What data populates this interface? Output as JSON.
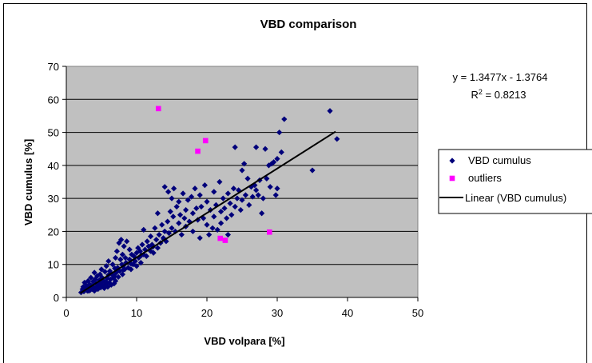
{
  "chart_data": {
    "type": "scatter",
    "title": "VBD comparison",
    "xlabel": "VBD volpara [%]",
    "ylabel": "VBD cumulus [%]",
    "xlim": [
      0,
      50
    ],
    "ylim": [
      0,
      70
    ],
    "xticks": [
      0,
      10,
      20,
      30,
      40,
      50
    ],
    "yticks": [
      0,
      10,
      20,
      30,
      40,
      50,
      60,
      70
    ],
    "grid": "horizontal",
    "plot_background": "#c0c0c0",
    "legend_position": "right",
    "trendline": {
      "name": "Linear (VBD cumulus)",
      "slope": 1.3477,
      "intercept": -1.3764,
      "x_range": [
        2.0,
        38.3
      ],
      "equation": "y = 1.3477x - 1.3764",
      "r2_label": "R",
      "r2_sup": "2",
      "r2_value": " = 0.8213",
      "color": "#000000"
    },
    "series": [
      {
        "name": "VBD cumulus",
        "color": "#00007a",
        "marker": "diamond",
        "points": [
          [
            2.1,
            1.5
          ],
          [
            2.3,
            2.5
          ],
          [
            2.4,
            3.2
          ],
          [
            2.5,
            1.8
          ],
          [
            2.6,
            4.5
          ],
          [
            2.8,
            2.8
          ],
          [
            2.9,
            3.5
          ],
          [
            3.0,
            2.0
          ],
          [
            3.1,
            5.0
          ],
          [
            3.2,
            3.0
          ],
          [
            3.3,
            4.0
          ],
          [
            3.4,
            2.2
          ],
          [
            3.5,
            6.0
          ],
          [
            3.6,
            3.5
          ],
          [
            3.7,
            2.5
          ],
          [
            3.8,
            4.8
          ],
          [
            3.9,
            3.2
          ],
          [
            4.0,
            7.5
          ],
          [
            4.0,
            2.0
          ],
          [
            4.1,
            5.5
          ],
          [
            4.2,
            3.0
          ],
          [
            4.3,
            4.2
          ],
          [
            4.4,
            6.5
          ],
          [
            4.5,
            2.5
          ],
          [
            4.6,
            3.8
          ],
          [
            4.7,
            5.2
          ],
          [
            4.8,
            7.0
          ],
          [
            4.9,
            3.0
          ],
          [
            5.0,
            4.5
          ],
          [
            5.0,
            8.5
          ],
          [
            5.1,
            6.0
          ],
          [
            5.2,
            3.5
          ],
          [
            5.3,
            5.0
          ],
          [
            5.4,
            2.8
          ],
          [
            5.5,
            7.8
          ],
          [
            5.6,
            4.0
          ],
          [
            5.7,
            9.5
          ],
          [
            5.8,
            5.8
          ],
          [
            5.9,
            3.2
          ],
          [
            6.0,
            6.8
          ],
          [
            6.0,
            11.0
          ],
          [
            6.1,
            4.5
          ],
          [
            6.2,
            8.0
          ],
          [
            6.3,
            5.5
          ],
          [
            6.4,
            3.8
          ],
          [
            6.5,
            7.0
          ],
          [
            6.6,
            10.0
          ],
          [
            6.7,
            6.0
          ],
          [
            6.8,
            4.2
          ],
          [
            6.9,
            8.8
          ],
          [
            7.0,
            12.0
          ],
          [
            7.0,
            5.0
          ],
          [
            7.1,
            7.5
          ],
          [
            7.2,
            14.0
          ],
          [
            7.3,
            9.0
          ],
          [
            7.4,
            6.2
          ],
          [
            7.5,
            16.5
          ],
          [
            7.6,
            8.0
          ],
          [
            7.7,
            11.5
          ],
          [
            7.8,
            17.5
          ],
          [
            7.9,
            10.0
          ],
          [
            8.0,
            7.0
          ],
          [
            8.0,
            13.0
          ],
          [
            8.1,
            9.5
          ],
          [
            8.2,
            15.5
          ],
          [
            8.3,
            8.5
          ],
          [
            8.4,
            12.0
          ],
          [
            8.5,
            10.5
          ],
          [
            8.6,
            17.0
          ],
          [
            8.8,
            9.0
          ],
          [
            9.0,
            11.5
          ],
          [
            9.0,
            14.5
          ],
          [
            9.2,
            8.5
          ],
          [
            9.3,
            13.0
          ],
          [
            9.5,
            10.0
          ],
          [
            9.6,
            12.5
          ],
          [
            9.8,
            11.0
          ],
          [
            10.0,
            13.5
          ],
          [
            10.0,
            9.5
          ],
          [
            10.2,
            15.0
          ],
          [
            10.3,
            12.0
          ],
          [
            10.5,
            14.0
          ],
          [
            10.6,
            10.5
          ],
          [
            10.8,
            16.0
          ],
          [
            11.0,
            13.0
          ],
          [
            11.0,
            20.5
          ],
          [
            11.2,
            14.5
          ],
          [
            11.4,
            12.5
          ],
          [
            11.5,
            17.0
          ],
          [
            11.7,
            15.5
          ],
          [
            12.0,
            14.0
          ],
          [
            12.0,
            18.5
          ],
          [
            12.2,
            16.0
          ],
          [
            12.4,
            13.5
          ],
          [
            12.6,
            21.0
          ],
          [
            12.8,
            17.5
          ],
          [
            13.0,
            15.0
          ],
          [
            13.0,
            25.5
          ],
          [
            13.2,
            19.0
          ],
          [
            13.4,
            16.5
          ],
          [
            13.6,
            22.0
          ],
          [
            13.8,
            18.0
          ],
          [
            14.0,
            20.0
          ],
          [
            14.0,
            33.5
          ],
          [
            14.2,
            17.0
          ],
          [
            14.4,
            23.0
          ],
          [
            14.5,
            32.0
          ],
          [
            14.6,
            19.5
          ],
          [
            14.8,
            26.0
          ],
          [
            15.0,
            21.0
          ],
          [
            15.0,
            30.0
          ],
          [
            15.2,
            24.5
          ],
          [
            15.3,
            33.0
          ],
          [
            15.5,
            20.0
          ],
          [
            15.7,
            27.5
          ],
          [
            16.0,
            22.5
          ],
          [
            16.0,
            29.0
          ],
          [
            16.2,
            25.0
          ],
          [
            16.4,
            19.0
          ],
          [
            16.6,
            31.5
          ],
          [
            16.8,
            24.0
          ],
          [
            17.0,
            26.5
          ],
          [
            17.0,
            21.5
          ],
          [
            17.3,
            29.5
          ],
          [
            17.5,
            23.0
          ],
          [
            17.8,
            30.5
          ],
          [
            18.0,
            25.5
          ],
          [
            18.0,
            20.0
          ],
          [
            18.3,
            33.0
          ],
          [
            18.5,
            27.0
          ],
          [
            18.7,
            23.5
          ],
          [
            19.0,
            31.0
          ],
          [
            19.0,
            18.0
          ],
          [
            19.2,
            27.5
          ],
          [
            19.5,
            24.0
          ],
          [
            19.7,
            34.0
          ],
          [
            20.0,
            22.0
          ],
          [
            20.0,
            29.0
          ],
          [
            20.3,
            19.0
          ],
          [
            20.5,
            26.5
          ],
          [
            20.8,
            21.0
          ],
          [
            21.0,
            32.0
          ],
          [
            21.0,
            24.5
          ],
          [
            21.3,
            28.0
          ],
          [
            21.5,
            20.5
          ],
          [
            21.8,
            35.0
          ],
          [
            22.0,
            26.0
          ],
          [
            22.0,
            22.5
          ],
          [
            22.3,
            30.0
          ],
          [
            22.5,
            27.0
          ],
          [
            22.8,
            24.0
          ],
          [
            23.0,
            31.5
          ],
          [
            23.0,
            19.0
          ],
          [
            23.3,
            28.5
          ],
          [
            23.5,
            25.0
          ],
          [
            23.8,
            33.0
          ],
          [
            24.0,
            27.5
          ],
          [
            24.0,
            45.5
          ],
          [
            24.3,
            30.0
          ],
          [
            24.5,
            32.5
          ],
          [
            24.8,
            26.5
          ],
          [
            25.0,
            38.5
          ],
          [
            25.0,
            29.5
          ],
          [
            25.3,
            40.5
          ],
          [
            25.5,
            31.0
          ],
          [
            25.8,
            36.0
          ],
          [
            26.0,
            28.0
          ],
          [
            26.3,
            33.5
          ],
          [
            26.5,
            30.5
          ],
          [
            26.8,
            34.0
          ],
          [
            27.0,
            45.5
          ],
          [
            27.0,
            32.5
          ],
          [
            27.3,
            31.0
          ],
          [
            27.5,
            35.5
          ],
          [
            27.8,
            25.5
          ],
          [
            28.0,
            30.0
          ],
          [
            28.3,
            45.0
          ],
          [
            28.5,
            36.0
          ],
          [
            28.8,
            40.0
          ],
          [
            29.0,
            33.5
          ],
          [
            29.2,
            40.5
          ],
          [
            29.5,
            41.0
          ],
          [
            29.8,
            31.0
          ],
          [
            30.0,
            33.0
          ],
          [
            30.0,
            42.0
          ],
          [
            30.3,
            50.0
          ],
          [
            30.6,
            44.0
          ],
          [
            31.0,
            54.0
          ],
          [
            35.0,
            38.5
          ],
          [
            37.5,
            56.5
          ],
          [
            38.5,
            48.0
          ],
          [
            3.2,
            2.0
          ],
          [
            4.4,
            3.4
          ],
          [
            5.6,
            4.8
          ],
          [
            6.8,
            6.5
          ],
          [
            8.1,
            8.4
          ],
          [
            9.2,
            10.2
          ],
          [
            10.7,
            12.8
          ],
          [
            12.3,
            15.3
          ],
          [
            13.9,
            17.6
          ]
        ]
      },
      {
        "name": "outliers",
        "color": "#ff00ff",
        "marker": "square",
        "points": [
          [
            13.1,
            57.2
          ],
          [
            18.7,
            44.3
          ],
          [
            19.8,
            47.5
          ],
          [
            21.9,
            17.9
          ],
          [
            22.6,
            17.3
          ],
          [
            28.9,
            19.8
          ]
        ]
      }
    ]
  }
}
